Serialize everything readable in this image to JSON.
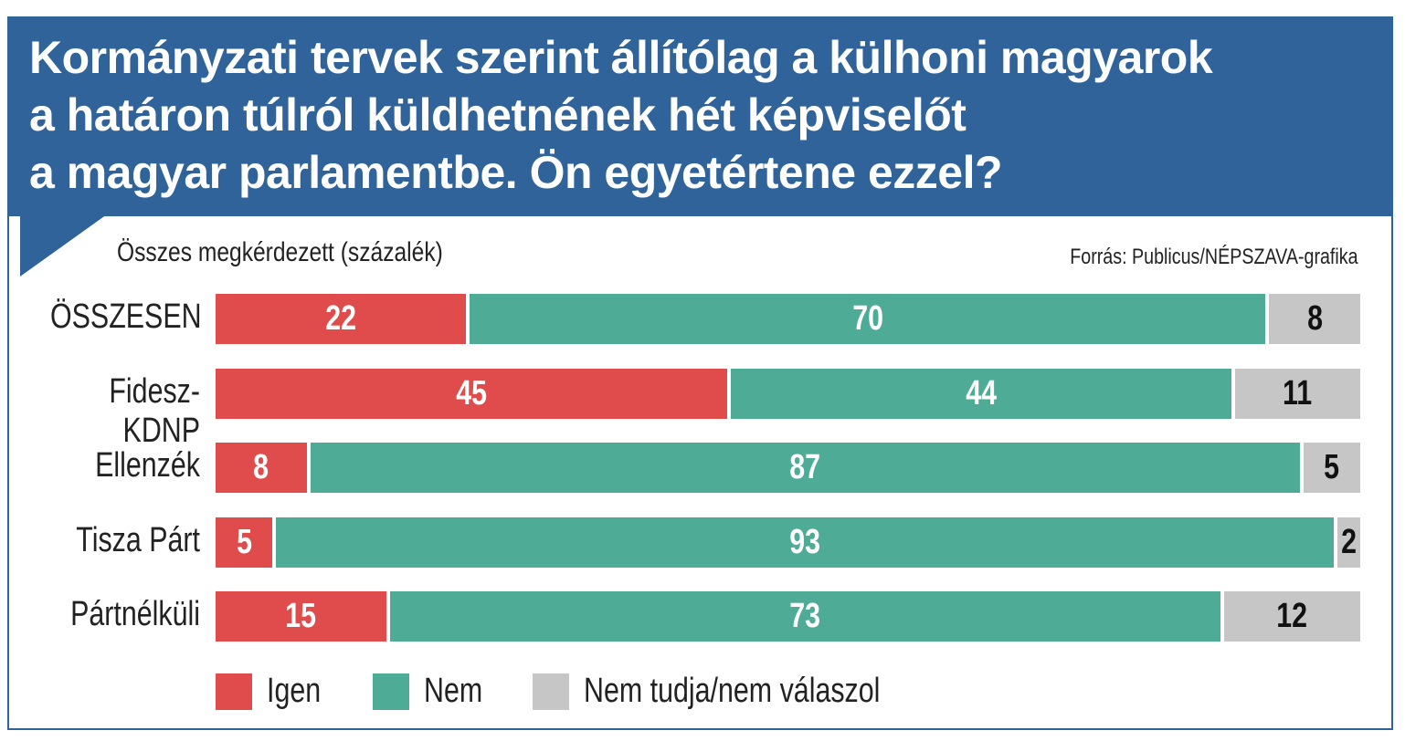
{
  "chart_data": {
    "type": "bar",
    "stacked": true,
    "orientation": "horizontal",
    "title": "Kormányzati tervek szerint állítólag a külhoni magyarok\na határon túlról küldhetnének hét képviselőt\na magyar parlamentbe. Ön egyetértene ezzel?",
    "subtitle": "Összes megkérdezett (százalék)",
    "source": "Forrás: Publicus/NÉPSZAVA-grafika",
    "categories": [
      "ÖSSZESEN",
      "Fidesz-KDNP",
      "Ellenzék",
      "Tisza Párt",
      "Pártnélküli"
    ],
    "series": [
      {
        "name": "Igen",
        "color": "#e04b4b",
        "text_color": "#ffffff",
        "values": [
          22,
          45,
          8,
          5,
          15
        ]
      },
      {
        "name": "Nem",
        "color": "#4eab96",
        "text_color": "#ffffff",
        "values": [
          70,
          44,
          87,
          93,
          73
        ]
      },
      {
        "name": "Nem tudja/nem válaszol",
        "color": "#c6c6c6",
        "text_color": "#111111",
        "values": [
          8,
          11,
          5,
          2,
          12
        ]
      }
    ],
    "xlim": [
      0,
      100
    ],
    "legend_position": "bottom"
  }
}
